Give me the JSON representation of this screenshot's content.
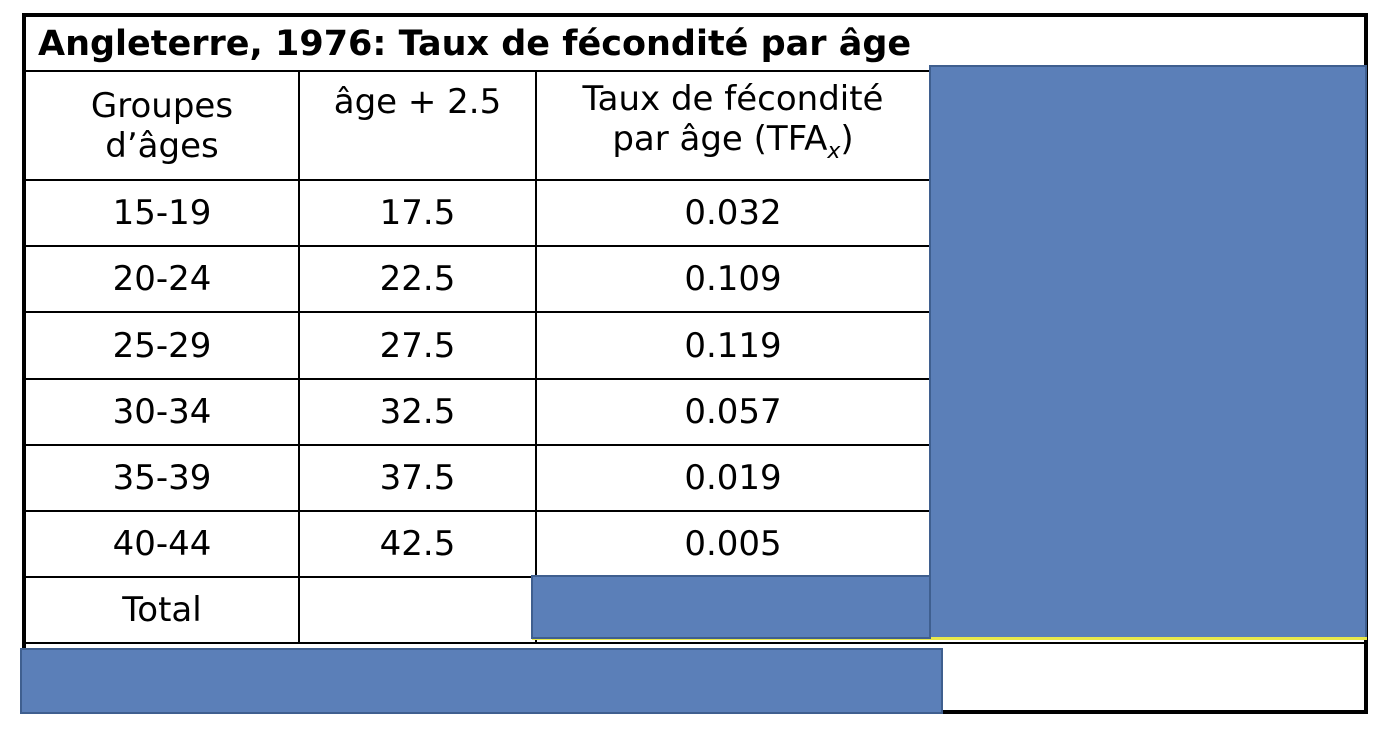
{
  "table": {
    "title": "Angleterre, 1976: Taux de fécondité par âge",
    "headers": {
      "age_group": "Groupes d’âges",
      "age_mid": "âge + 2.5",
      "rate_main": "Taux de fécondité",
      "rate_sub_prefix": "par âge (TFA",
      "rate_sub_index": "x",
      "rate_sub_suffix": ")"
    },
    "rows": [
      {
        "group": "15-19",
        "mid": "17.5",
        "rate": "0.032"
      },
      {
        "group": "20-24",
        "mid": "22.5",
        "rate": "0.109"
      },
      {
        "group": "25-29",
        "mid": "27.5",
        "rate": "0.119"
      },
      {
        "group": "30-34",
        "mid": "32.5",
        "rate": "0.057"
      },
      {
        "group": "35-39",
        "mid": "37.5",
        "rate": "0.019"
      },
      {
        "group": "40-44",
        "mid": "42.5",
        "rate": "0.005"
      }
    ],
    "total_label": "Total"
  },
  "colors": {
    "mask_fill": "#5b7fb8",
    "mask_border": "#3f5f8f",
    "grid": "#000000"
  }
}
